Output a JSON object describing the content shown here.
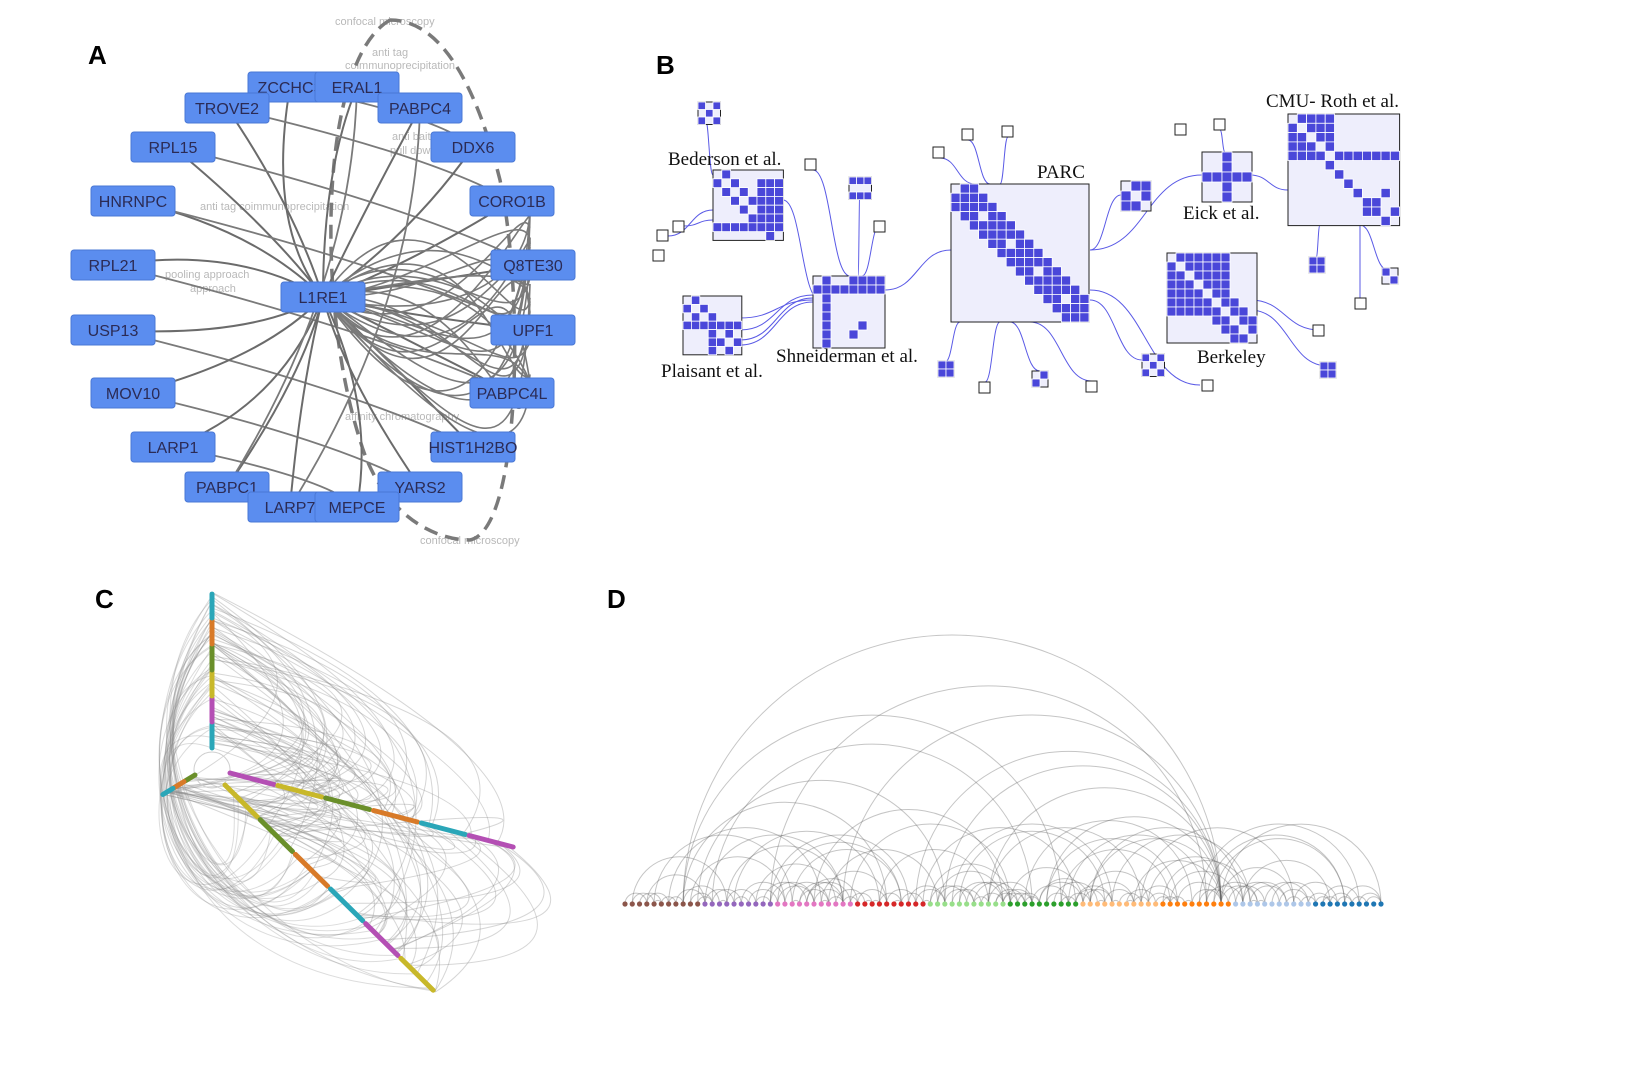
{
  "panels": {
    "A": {
      "letter": "A",
      "center_node": "L1RE1",
      "nodes": [
        "ZCCHC3",
        "ERAL1",
        "TROVE2",
        "PABPC4",
        "RPL15",
        "DDX6",
        "HNRNPC",
        "CORO1B",
        "RPL21",
        "Q8TE30",
        "USP13",
        "UPF1",
        "MOV10",
        "PABPC4L",
        "LARP1",
        "HIST1H2BO",
        "PABPC1",
        "YARS2",
        "LARP7",
        "MEPCE"
      ],
      "edge_labels": [
        "confocal microscopy",
        "anti tag",
        "coimmunoprecipitation",
        "anti bait coip",
        "pull down",
        "approach",
        "anti tag coimmunoprecipitation",
        "affinity chromatography",
        "pooling approach",
        "confocal microscopy"
      ],
      "node_color": "#5b8def"
    },
    "B": {
      "letter": "B",
      "groups": [
        "Bederson et al.",
        "PARC",
        "CMU- Roth et al.",
        "Eick et al.",
        "Plaisant et al.",
        "Shneiderman et al.",
        "Berkeley"
      ],
      "cell_color": "#4a47d9"
    },
    "C": {
      "letter": "C",
      "axis_colors": [
        "#2aa6b8",
        "#b44fb4",
        "#c8b82a",
        "#6a8f2a",
        "#d87a28"
      ]
    },
    "D": {
      "letter": "D",
      "node_colors": [
        "#8c564b",
        "#9467bd",
        "#e377c2",
        "#d62728",
        "#98df8a",
        "#2ca02c",
        "#ffbb78",
        "#ff7f0e",
        "#aec7e8",
        "#1f77b4"
      ]
    }
  }
}
